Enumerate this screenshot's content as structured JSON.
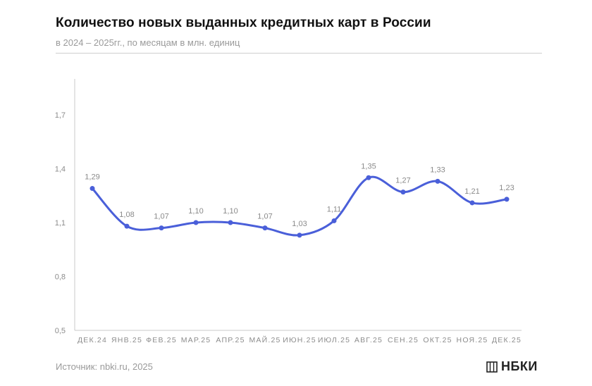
{
  "header": {
    "title": "Количество новых выданных кредитных карт в России",
    "subtitle": "в 2024 – 2025гг., по месяцам в млн. единиц"
  },
  "footer": {
    "source": "Источник: nbki.ru, 2025",
    "brand": "НБКИ",
    "brand_icon": "nbki-logo-icon"
  },
  "colors": {
    "line": "#4a5fd9",
    "axis": "#c8c8c8",
    "text_muted": "#8c8c8c"
  },
  "chart_data": {
    "type": "line",
    "title": "Количество новых выданных кредитных карт в России",
    "subtitle": "в 2024 – 2025гг., по месяцам в млн. единиц",
    "xlabel": "",
    "ylabel": "",
    "categories": [
      "ДЕК.24",
      "ЯНВ.25",
      "ФЕВ.25",
      "МАР.25",
      "АПР.25",
      "МАЙ.25",
      "ИЮН.25",
      "ИЮЛ.25",
      "АВГ.25",
      "СЕН.25",
      "ОКТ.25",
      "НОЯ.25",
      "ДЕК.25"
    ],
    "series": [
      {
        "values": [
          1.29,
          1.08,
          1.07,
          1.1,
          1.1,
          1.07,
          1.03,
          1.11,
          1.35,
          1.27,
          1.33,
          1.21,
          1.23
        ],
        "labels": [
          "1,29",
          "1,08",
          "1,07",
          "1,10",
          "1,10",
          "1,07",
          "1,03",
          "1,11",
          "1,35",
          "1,27",
          "1,33",
          "1,21",
          "1,23"
        ]
      }
    ],
    "yticks": [
      0.5,
      0.8,
      1.1,
      1.4,
      1.7
    ],
    "ytick_labels": [
      "0,5",
      "0,8",
      "1,1",
      "1,4",
      "1,7"
    ],
    "ylim": [
      0.5,
      1.9
    ],
    "grid": false,
    "legend": "none",
    "smooth": true
  }
}
